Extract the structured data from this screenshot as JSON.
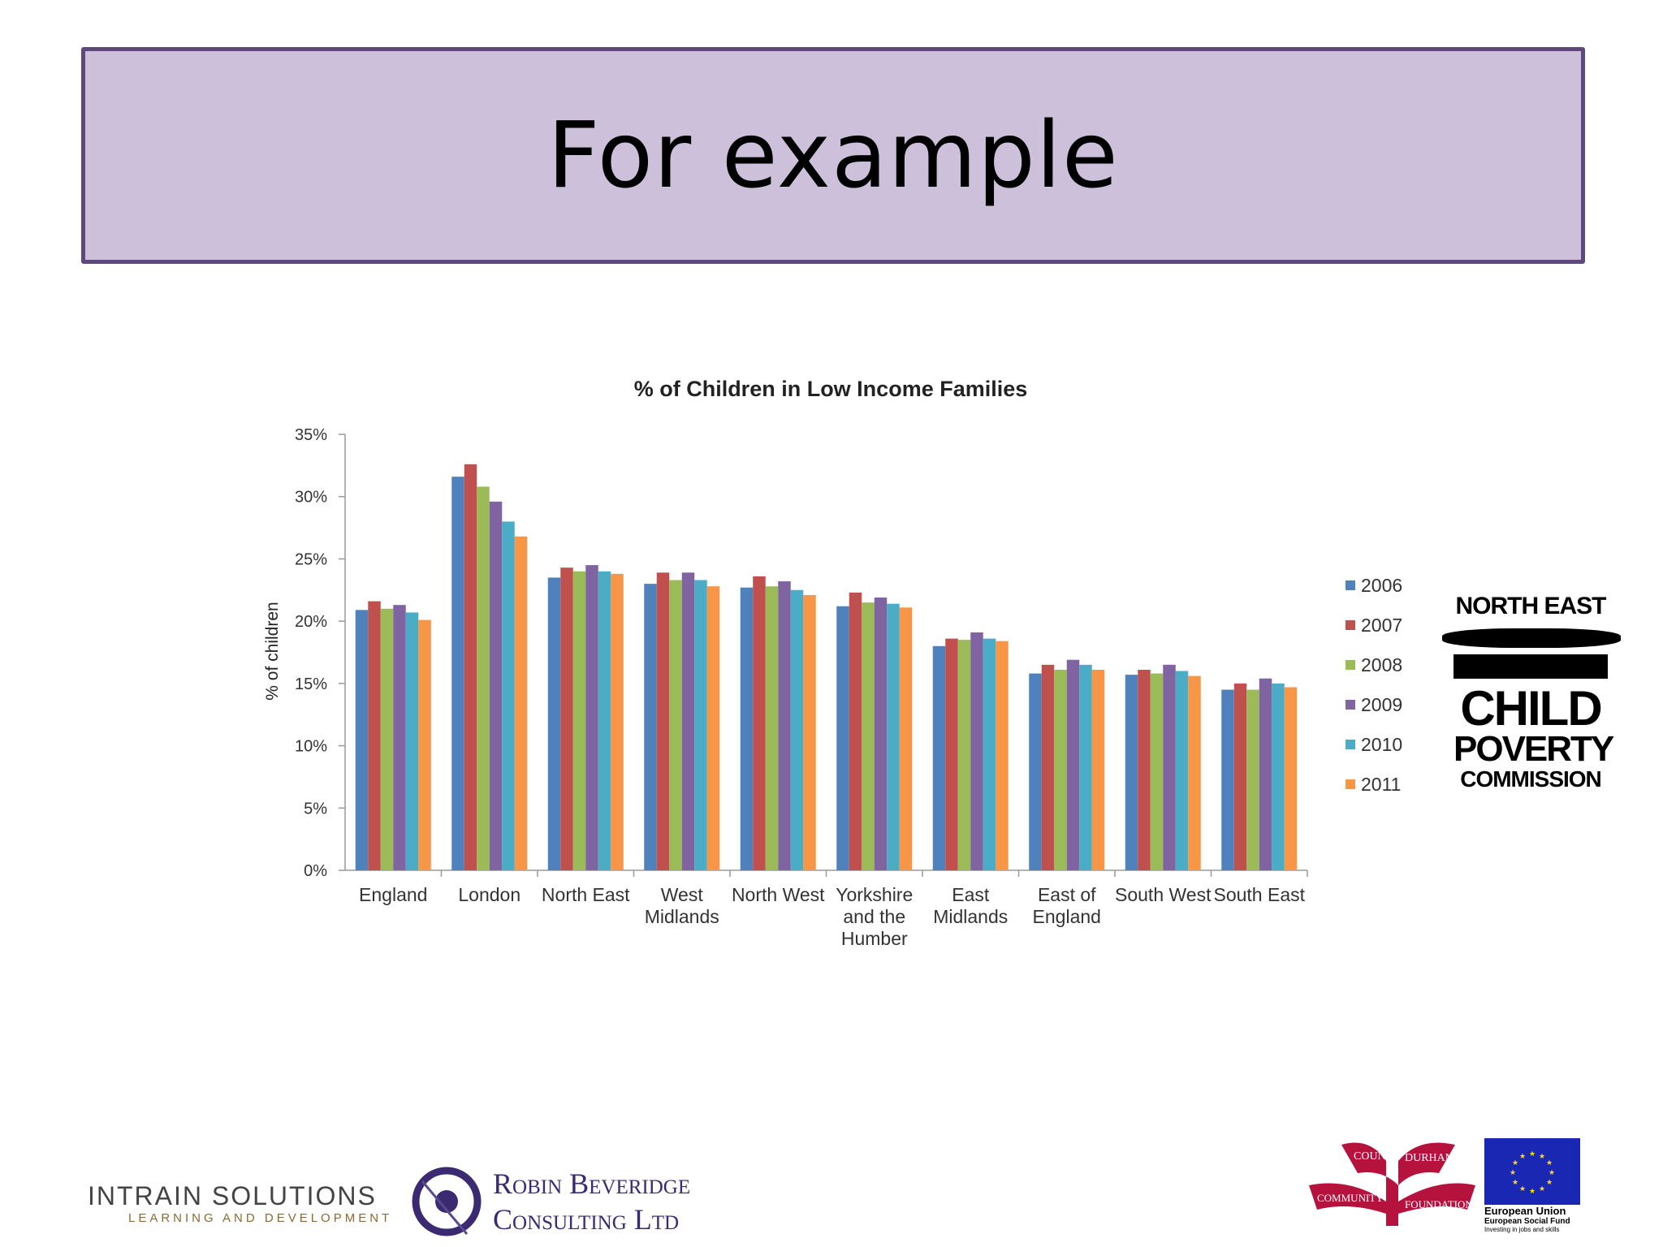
{
  "slide": {
    "title": "For example"
  },
  "chart_data": {
    "type": "bar",
    "title": "% of Children in Low Income Families",
    "ylabel": "% of children",
    "xlabel": "",
    "ylim": [
      0,
      35
    ],
    "yticks": [
      "0%",
      "5%",
      "10%",
      "15%",
      "20%",
      "25%",
      "30%",
      "35%"
    ],
    "categories": [
      "England",
      "London",
      "North East",
      "West Midlands",
      "North West",
      "Yorkshire and the Humber",
      "East Midlands",
      "East of England",
      "South West",
      "South East"
    ],
    "category_lines": [
      [
        "England"
      ],
      [
        "London"
      ],
      [
        "North East"
      ],
      [
        "West",
        "Midlands"
      ],
      [
        "North West"
      ],
      [
        "Yorkshire",
        "and the",
        "Humber"
      ],
      [
        "East",
        "Midlands"
      ],
      [
        "East of",
        "England"
      ],
      [
        "South West"
      ],
      [
        "South East"
      ]
    ],
    "series": [
      {
        "name": "2006",
        "color": "#4f81bd",
        "values": [
          20.9,
          31.6,
          23.5,
          23.0,
          22.7,
          21.2,
          18.0,
          15.8,
          15.7,
          14.5
        ]
      },
      {
        "name": "2007",
        "color": "#c0504d",
        "values": [
          21.6,
          32.6,
          24.3,
          23.9,
          23.6,
          22.3,
          18.6,
          16.5,
          16.1,
          15.0
        ]
      },
      {
        "name": "2008",
        "color": "#9bbb59",
        "values": [
          21.0,
          30.8,
          24.0,
          23.3,
          22.8,
          21.5,
          18.5,
          16.1,
          15.8,
          14.5
        ]
      },
      {
        "name": "2009",
        "color": "#8064a2",
        "values": [
          21.3,
          29.6,
          24.5,
          23.9,
          23.2,
          21.9,
          19.1,
          16.9,
          16.5,
          15.4
        ]
      },
      {
        "name": "2010",
        "color": "#4bacc6",
        "values": [
          20.7,
          28.0,
          24.0,
          23.3,
          22.5,
          21.4,
          18.6,
          16.5,
          16.0,
          15.0
        ]
      },
      {
        "name": "2011",
        "color": "#f79646",
        "values": [
          20.1,
          26.8,
          23.8,
          22.8,
          22.1,
          21.1,
          18.4,
          16.1,
          15.6,
          14.7
        ]
      }
    ],
    "grid": false,
    "legend_position": "right"
  },
  "logos": {
    "npc": {
      "line1": "NORTH EAST",
      "line2": "CHILD",
      "line3": "POVERTY",
      "line4": "COMMISSION"
    },
    "intrain": {
      "main": "INTRAIN SOLUTIONS",
      "sub": "LEARNING AND DEVELOPMENT"
    },
    "robin": {
      "line1": "Robin Beveridge",
      "line2": "Consulting Ltd"
    },
    "durham": {
      "w1": "COUNTY",
      "w2": "DURHAM",
      "w3": "COMMUNITY",
      "w4": "FOUNDATION"
    },
    "eu": {
      "line1": "European Union",
      "line2": "European Social Fund",
      "line3": "Investing in jobs and skills"
    }
  }
}
